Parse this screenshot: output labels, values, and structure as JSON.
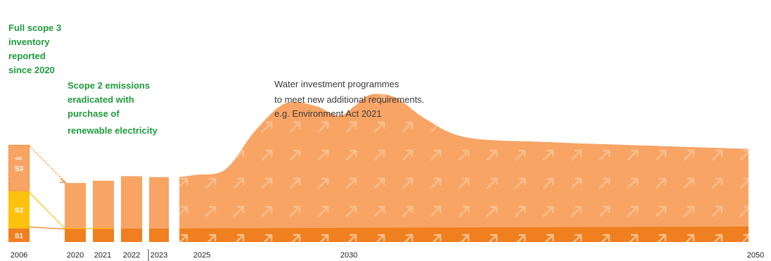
{
  "chart_data": {
    "type": "area",
    "colors": {
      "s1": "#f07f1f",
      "s2": "#fdc10e",
      "s3": "#f8a465",
      "area": "#f8a465",
      "area_base": "#f07f1f",
      "annotation": "#1f9a3e",
      "arrow_pattern": "#fbbf8d"
    },
    "bars": [
      {
        "year": "2006",
        "s1": 30,
        "s2": 82,
        "s3": 102,
        "s3_est_label": "est."
      },
      {
        "year": "2020",
        "s1": 30,
        "s2": 0,
        "s3": 100
      },
      {
        "year": "2021",
        "s1": 30,
        "s2": 0,
        "s3": 105
      },
      {
        "year": "2022",
        "s1": 30,
        "s2": 0,
        "s3": 115
      },
      {
        "year": "2023",
        "s1": 30,
        "s2": 0,
        "s3": 113
      }
    ],
    "segment_labels": {
      "s1": "S1",
      "s2": "S2",
      "s3": "S3"
    },
    "area_series": [
      {
        "x": 2024.5,
        "y": 143
      },
      {
        "x": 2025,
        "y": 148
      },
      {
        "x": 2026,
        "y": 160
      },
      {
        "x": 2027,
        "y": 245
      },
      {
        "x": 2028,
        "y": 305
      },
      {
        "x": 2029,
        "y": 300
      },
      {
        "x": 2029.8,
        "y": 278
      },
      {
        "x": 2030.5,
        "y": 300
      },
      {
        "x": 2031.3,
        "y": 325
      },
      {
        "x": 2032.5,
        "y": 318
      },
      {
        "x": 2034,
        "y": 270
      },
      {
        "x": 2036,
        "y": 230
      },
      {
        "x": 2040,
        "y": 220
      },
      {
        "x": 2045,
        "y": 212
      },
      {
        "x": 2050,
        "y": 205
      }
    ],
    "area_base": {
      "y_start": 30,
      "y_end": 34
    },
    "x_ticks": [
      "2006",
      "2020",
      "2021",
      "2022",
      "2023",
      "2025",
      "2030",
      "2050"
    ],
    "annotations": {
      "scope3": [
        "Full scope 3",
        "inventory",
        "reported",
        "since 2020"
      ],
      "scope2": [
        "Scope 2 emissions",
        "eradicated with",
        "purchase of",
        "renewable electricity"
      ],
      "water": [
        "Water investment programmes",
        "to meet new additional requirements.",
        " e.g. Environment Act 2021"
      ]
    },
    "ylim": [
      0,
      330
    ]
  }
}
